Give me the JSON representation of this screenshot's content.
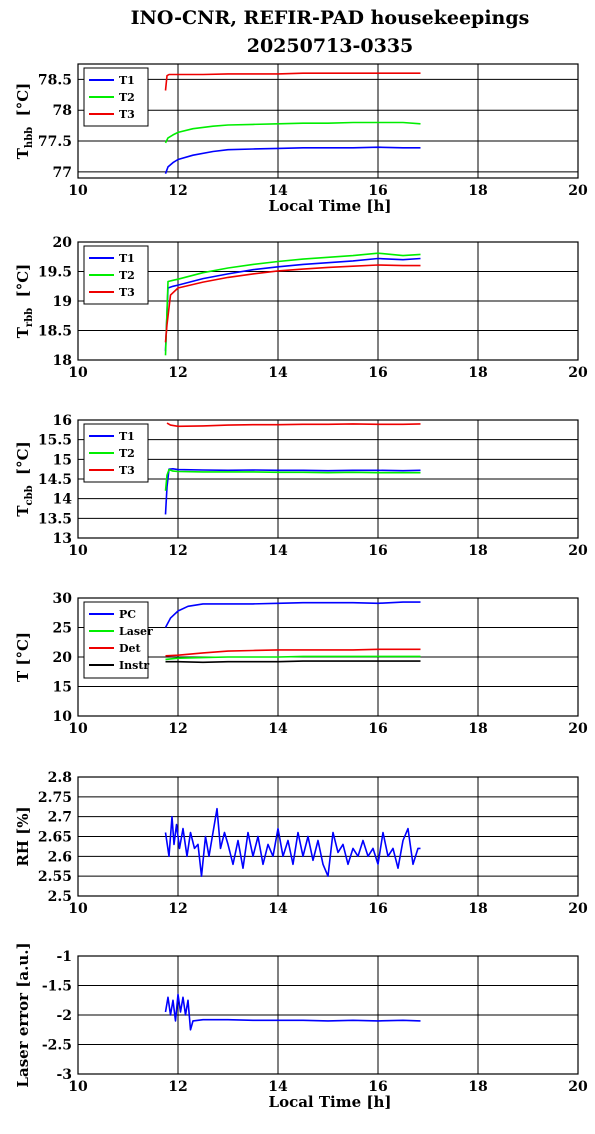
{
  "page": {
    "title_line1": "INO-CNR, REFIR-PAD housekeepings",
    "title_line2": "20250713-0335"
  },
  "chart_data": [
    {
      "id": "p1",
      "type": "line",
      "ylabel_main": "T",
      "ylabel_sub": "hbb",
      "ylabel_unit": "[°C]",
      "xlabel": "Local Time [h]",
      "xlim": [
        10,
        20
      ],
      "ylim": [
        76.9,
        78.75
      ],
      "yticks": [
        77,
        77.5,
        78,
        78.5
      ],
      "ytick_labels": [
        "77",
        "77.5",
        "78",
        "78.5"
      ],
      "xticks": [
        10,
        12,
        14,
        16,
        18,
        20
      ],
      "legend": "top-left",
      "grid": true,
      "series": [
        {
          "name": "T1",
          "color": "#0000ff",
          "x": [
            11.75,
            11.8,
            11.9,
            12.0,
            12.3,
            12.7,
            13.0,
            13.5,
            14.0,
            14.5,
            15.0,
            15.5,
            16.0,
            16.5,
            16.85
          ],
          "y": [
            76.97,
            77.08,
            77.15,
            77.2,
            77.27,
            77.33,
            77.36,
            77.37,
            77.38,
            77.39,
            77.39,
            77.39,
            77.4,
            77.39,
            77.39
          ]
        },
        {
          "name": "T2",
          "color": "#00ee00",
          "x": [
            11.75,
            11.8,
            11.9,
            12.0,
            12.3,
            12.7,
            13.0,
            13.5,
            14.0,
            14.5,
            15.0,
            15.5,
            16.0,
            16.5,
            16.85
          ],
          "y": [
            77.47,
            77.55,
            77.6,
            77.64,
            77.7,
            77.74,
            77.76,
            77.77,
            77.78,
            77.79,
            77.79,
            77.8,
            77.8,
            77.8,
            77.78
          ]
        },
        {
          "name": "T3",
          "color": "#ee0000",
          "x": [
            11.75,
            11.78,
            11.82,
            12.0,
            12.5,
            13.0,
            13.5,
            14.0,
            14.5,
            15.0,
            15.5,
            16.0,
            16.5,
            16.85
          ],
          "y": [
            78.32,
            78.56,
            78.58,
            78.58,
            78.58,
            78.59,
            78.59,
            78.59,
            78.6,
            78.6,
            78.6,
            78.6,
            78.6,
            78.6
          ]
        }
      ]
    },
    {
      "id": "p2",
      "type": "line",
      "ylabel_main": "T",
      "ylabel_sub": "rbb",
      "ylabel_unit": "[°C]",
      "xlabel": "",
      "xlim": [
        10,
        20
      ],
      "ylim": [
        18,
        20
      ],
      "yticks": [
        18,
        18.5,
        19,
        19.5,
        20
      ],
      "ytick_labels": [
        "18",
        "18.5",
        "19",
        "19.5",
        "20"
      ],
      "xticks": [
        10,
        12,
        14,
        16,
        18,
        20
      ],
      "legend": "top-left",
      "grid": true,
      "series": [
        {
          "name": "T1",
          "color": "#0000ff",
          "x": [
            11.75,
            11.8,
            11.9,
            12.0,
            12.5,
            13.0,
            13.5,
            14.0,
            14.5,
            15.0,
            15.5,
            16.0,
            16.5,
            16.85
          ],
          "y": [
            18.15,
            19.22,
            19.25,
            19.27,
            19.38,
            19.46,
            19.53,
            19.58,
            19.62,
            19.65,
            19.68,
            19.72,
            19.7,
            19.72
          ]
        },
        {
          "name": "T2",
          "color": "#00ee00",
          "x": [
            11.75,
            11.8,
            11.9,
            12.0,
            12.5,
            13.0,
            13.5,
            14.0,
            14.5,
            15.0,
            15.5,
            16.0,
            16.5,
            16.85
          ],
          "y": [
            18.08,
            19.33,
            19.35,
            19.37,
            19.48,
            19.56,
            19.62,
            19.67,
            19.71,
            19.74,
            19.77,
            19.81,
            19.77,
            19.79
          ]
        },
        {
          "name": "T3",
          "color": "#ee0000",
          "x": [
            11.75,
            11.78,
            11.85,
            12.0,
            12.5,
            13.0,
            13.5,
            14.0,
            14.5,
            15.0,
            15.5,
            16.0,
            16.5,
            16.85
          ],
          "y": [
            18.3,
            18.6,
            19.1,
            19.22,
            19.32,
            19.4,
            19.46,
            19.51,
            19.54,
            19.57,
            19.59,
            19.61,
            19.6,
            19.6
          ]
        }
      ]
    },
    {
      "id": "p3",
      "type": "line",
      "ylabel_main": "T",
      "ylabel_sub": "cbb",
      "ylabel_unit": "[°C]",
      "xlabel": "",
      "xlim": [
        10,
        20
      ],
      "ylim": [
        13,
        16
      ],
      "yticks": [
        13,
        13.5,
        14,
        14.5,
        15,
        15.5,
        16
      ],
      "ytick_labels": [
        "13",
        "13.5",
        "14",
        "14.5",
        "15",
        "15.5",
        "16"
      ],
      "xticks": [
        10,
        12,
        14,
        16,
        18,
        20
      ],
      "legend": "top-left",
      "grid": true,
      "series": [
        {
          "name": "T1",
          "color": "#0000ff",
          "x": [
            11.75,
            11.78,
            11.82,
            11.9,
            12.0,
            12.5,
            13.0,
            13.5,
            14.0,
            14.5,
            15.0,
            15.5,
            16.0,
            16.5,
            16.85
          ],
          "y": [
            13.6,
            14.3,
            14.75,
            14.76,
            14.74,
            14.73,
            14.72,
            14.73,
            14.72,
            14.72,
            14.71,
            14.72,
            14.72,
            14.71,
            14.72
          ]
        },
        {
          "name": "T2",
          "color": "#00ee00",
          "x": [
            11.75,
            11.78,
            11.82,
            11.9,
            12.0,
            12.5,
            13.0,
            13.5,
            14.0,
            14.5,
            15.0,
            15.5,
            16.0,
            16.5,
            16.85
          ],
          "y": [
            14.2,
            14.6,
            14.74,
            14.7,
            14.69,
            14.68,
            14.68,
            14.68,
            14.67,
            14.67,
            14.66,
            14.67,
            14.66,
            14.66,
            14.66
          ]
        },
        {
          "name": "T3",
          "color": "#ee0000",
          "x": [
            11.78,
            11.85,
            12.0,
            12.5,
            13.0,
            13.5,
            14.0,
            14.5,
            15.0,
            15.5,
            16.0,
            16.5,
            16.85
          ],
          "y": [
            15.92,
            15.87,
            15.84,
            15.85,
            15.87,
            15.88,
            15.88,
            15.89,
            15.89,
            15.9,
            15.89,
            15.89,
            15.9
          ]
        }
      ]
    },
    {
      "id": "p4",
      "type": "line",
      "ylabel_main": "T [°C]",
      "ylabel_sub": "",
      "ylabel_unit": "",
      "xlabel": "",
      "xlim": [
        10,
        20
      ],
      "ylim": [
        10,
        30
      ],
      "yticks": [
        10,
        15,
        20,
        25,
        30
      ],
      "ytick_labels": [
        "10",
        "15",
        "20",
        "25",
        "30"
      ],
      "xticks": [
        10,
        12,
        14,
        16,
        18,
        20
      ],
      "legend": "top-left",
      "grid": true,
      "series": [
        {
          "name": "PC",
          "color": "#0000ff",
          "x": [
            11.75,
            11.85,
            12.0,
            12.2,
            12.5,
            13.0,
            13.5,
            14.0,
            14.5,
            15.0,
            15.5,
            16.0,
            16.5,
            16.85
          ],
          "y": [
            25.0,
            26.6,
            27.8,
            28.6,
            29.0,
            29.0,
            29.0,
            29.1,
            29.2,
            29.2,
            29.2,
            29.1,
            29.3,
            29.3
          ]
        },
        {
          "name": "Laser",
          "color": "#00ee00",
          "x": [
            11.75,
            12.0,
            12.5,
            13.0,
            13.5,
            14.0,
            14.5,
            15.0,
            15.5,
            16.0,
            16.5,
            16.85
          ],
          "y": [
            19.6,
            19.8,
            19.9,
            20.0,
            20.0,
            20.0,
            20.1,
            20.1,
            20.1,
            20.1,
            20.1,
            20.1
          ]
        },
        {
          "name": "Det",
          "color": "#ee0000",
          "x": [
            11.75,
            12.0,
            12.5,
            13.0,
            13.5,
            14.0,
            14.5,
            15.0,
            15.5,
            16.0,
            16.5,
            16.85
          ],
          "y": [
            20.2,
            20.3,
            20.7,
            21.0,
            21.1,
            21.2,
            21.2,
            21.2,
            21.2,
            21.3,
            21.3,
            21.3
          ]
        },
        {
          "name": "Instr",
          "color": "#000000",
          "x": [
            11.75,
            12.0,
            12.5,
            13.0,
            13.5,
            14.0,
            14.5,
            15.0,
            15.5,
            16.0,
            16.5,
            16.85
          ],
          "y": [
            19.2,
            19.2,
            19.1,
            19.2,
            19.2,
            19.2,
            19.3,
            19.3,
            19.3,
            19.3,
            19.3,
            19.3
          ]
        }
      ]
    },
    {
      "id": "p5",
      "type": "line",
      "ylabel_main": "RH [%]",
      "ylabel_sub": "",
      "ylabel_unit": "",
      "xlabel": "",
      "xlim": [
        10,
        20
      ],
      "ylim": [
        2.5,
        2.8
      ],
      "yticks": [
        2.5,
        2.55,
        2.6,
        2.65,
        2.7,
        2.75,
        2.8
      ],
      "ytick_labels": [
        "2.5",
        "2.55",
        "2.6",
        "2.65",
        "2.7",
        "2.75",
        "2.8"
      ],
      "xticks": [
        10,
        12,
        14,
        16,
        18,
        20
      ],
      "legend": "none",
      "grid": true,
      "series": [
        {
          "name": "",
          "color": "#0000ff",
          "x": [
            11.75,
            11.82,
            11.88,
            11.92,
            11.97,
            12.03,
            12.1,
            12.18,
            12.25,
            12.33,
            12.4,
            12.47,
            12.55,
            12.62,
            12.7,
            12.78,
            12.85,
            12.93,
            13.0,
            13.1,
            13.2,
            13.3,
            13.4,
            13.5,
            13.6,
            13.7,
            13.8,
            13.9,
            14.0,
            14.1,
            14.2,
            14.3,
            14.4,
            14.5,
            14.6,
            14.7,
            14.8,
            14.9,
            15.0,
            15.1,
            15.2,
            15.3,
            15.4,
            15.5,
            15.6,
            15.7,
            15.8,
            15.9,
            16.0,
            16.1,
            16.2,
            16.3,
            16.4,
            16.5,
            16.6,
            16.7,
            16.8,
            16.85
          ],
          "y": [
            2.66,
            2.6,
            2.7,
            2.63,
            2.68,
            2.62,
            2.67,
            2.6,
            2.66,
            2.62,
            2.63,
            2.55,
            2.65,
            2.6,
            2.66,
            2.72,
            2.62,
            2.66,
            2.63,
            2.58,
            2.64,
            2.57,
            2.66,
            2.6,
            2.65,
            2.58,
            2.63,
            2.6,
            2.67,
            2.6,
            2.64,
            2.58,
            2.66,
            2.6,
            2.65,
            2.59,
            2.64,
            2.58,
            2.55,
            2.66,
            2.61,
            2.63,
            2.58,
            2.62,
            2.6,
            2.64,
            2.6,
            2.62,
            2.58,
            2.66,
            2.6,
            2.62,
            2.57,
            2.64,
            2.67,
            2.58,
            2.62,
            2.62
          ]
        }
      ]
    },
    {
      "id": "p6",
      "type": "line",
      "ylabel_main": "Laser error [a.u.]",
      "ylabel_sub": "",
      "ylabel_unit": "",
      "xlabel": "Local Time [h]",
      "xlim": [
        10,
        20
      ],
      "ylim": [
        -3,
        -1
      ],
      "yticks": [
        -3,
        -2.5,
        -2,
        -1.5,
        -1
      ],
      "ytick_labels": [
        "-3",
        "-2.5",
        "-2",
        "-1.5",
        "-1"
      ],
      "xticks": [
        10,
        12,
        14,
        16,
        18,
        20
      ],
      "legend": "none",
      "grid": true,
      "series": [
        {
          "name": "",
          "color": "#0000ff",
          "x": [
            11.75,
            11.8,
            11.85,
            11.9,
            11.95,
            12.0,
            12.05,
            12.1,
            12.15,
            12.2,
            12.25,
            12.3,
            12.5,
            13.0,
            13.5,
            14.0,
            14.5,
            15.0,
            15.5,
            16.0,
            16.5,
            16.85
          ],
          "y": [
            -1.95,
            -1.7,
            -2.0,
            -1.75,
            -2.1,
            -1.65,
            -1.95,
            -1.7,
            -2.0,
            -1.75,
            -2.25,
            -2.1,
            -2.08,
            -2.08,
            -2.09,
            -2.09,
            -2.09,
            -2.1,
            -2.09,
            -2.1,
            -2.09,
            -2.1
          ]
        }
      ]
    }
  ]
}
